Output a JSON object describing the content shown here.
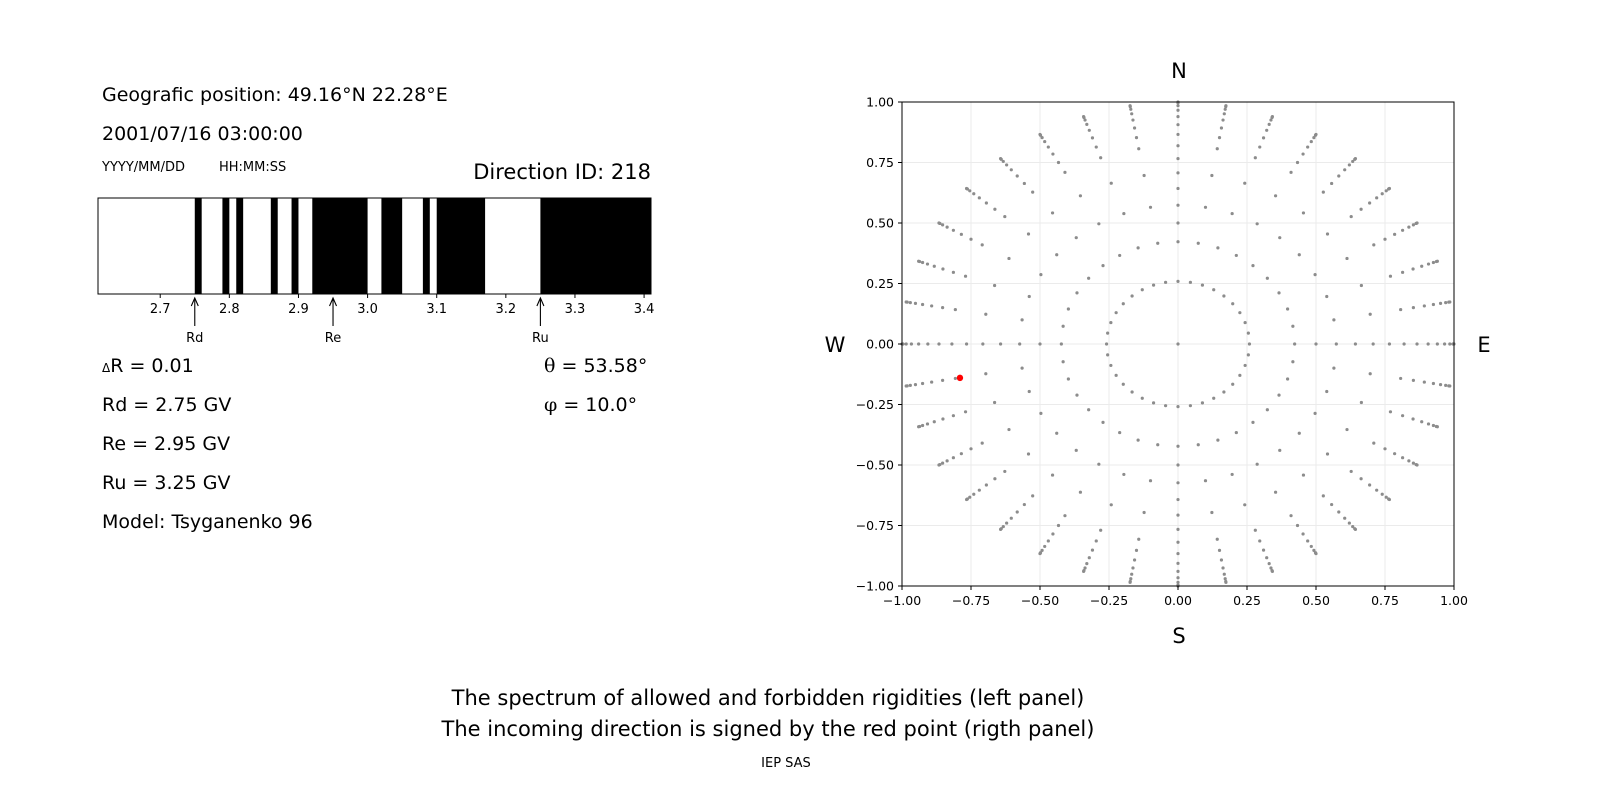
{
  "left_panel": {
    "position_label": "Geografic position: 49.16°N 22.28°E",
    "datetime": "2001/07/16 03:00:00",
    "date_format": "YYYY/MM/DD",
    "time_format": "HH:MM:SS",
    "direction_id": "Direction ID: 218",
    "delta_r": {
      "symbol": "Δ",
      "text": "R = 0.01"
    },
    "rd": "Rd = 2.75 GV",
    "re": "Re = 2.95 GV",
    "ru": "Ru = 3.25 GV",
    "model": "Model: Tsyganenko 96",
    "theta": {
      "symbol": "θ",
      "text": " = 53.58°"
    },
    "phi": {
      "symbol": "φ",
      "text": " = 10.0°"
    }
  },
  "footer": {
    "line1": "The spectrum of allowed and forbidden rigidities (left panel)",
    "line2": "The incoming direction is signed by the red point (rigth panel)",
    "credit": "IEP SAS"
  },
  "chart_data": [
    {
      "type": "spectrum",
      "xlim": [
        2.61,
        3.41
      ],
      "x_ticks": [
        "2.7",
        "2.8",
        "2.9",
        "3.0",
        "3.1",
        "3.2",
        "3.3",
        "3.4"
      ],
      "forbidden_intervals": [
        [
          2.75,
          2.76
        ],
        [
          2.79,
          2.8
        ],
        [
          2.81,
          2.82
        ],
        [
          2.86,
          2.87
        ],
        [
          2.89,
          2.9
        ],
        [
          2.92,
          3.0
        ],
        [
          3.02,
          3.05
        ],
        [
          3.08,
          3.09
        ],
        [
          3.1,
          3.17
        ],
        [
          3.25,
          3.41
        ]
      ],
      "markers": [
        {
          "label": "Rd",
          "value": 2.75
        },
        {
          "label": "Re",
          "value": 2.95
        },
        {
          "label": "Ru",
          "value": 3.25
        }
      ],
      "colors": {
        "allowed": "#ffffff",
        "forbidden": "#000000"
      }
    },
    {
      "type": "scatter",
      "xlim": [
        -1.0,
        1.0
      ],
      "ylim": [
        -1.0,
        1.0
      ],
      "x_ticks": [
        "−1.00",
        "−0.75",
        "−0.50",
        "−0.25",
        "0.00",
        "0.25",
        "0.50",
        "0.75",
        "1.00"
      ],
      "y_ticks": [
        "1.00",
        "0.75",
        "0.50",
        "0.25",
        "0.00",
        "−0.25",
        "−0.50",
        "−0.75",
        "−1.00"
      ],
      "compass": {
        "north": "N",
        "south": "S",
        "west": "W",
        "east": "E"
      },
      "grid": true,
      "grid_pattern": {
        "azimuth_step_deg": 10,
        "rings_deg": [
          0,
          15,
          25,
          35,
          45,
          55,
          60,
          65,
          70,
          75,
          80,
          85,
          90
        ],
        "rings_deg_axes": [
          0,
          15,
          25,
          30,
          35,
          40,
          45,
          50,
          55,
          60,
          65,
          70,
          75,
          80,
          85,
          90
        ],
        "projection": "sin(zenith)"
      },
      "highlight_point": {
        "x": -0.79,
        "y": -0.14
      },
      "colors": {
        "points": "#8c8c8c",
        "highlight": "#ff0000"
      }
    }
  ]
}
